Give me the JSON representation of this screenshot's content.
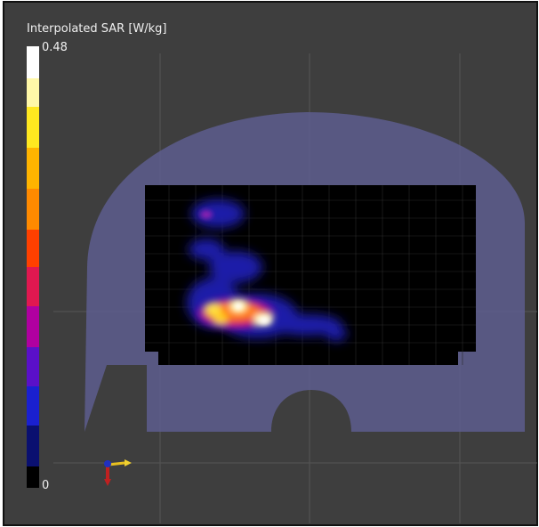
{
  "colorbar": {
    "title": "Interpolated SAR [W/kg]",
    "max": 0.48,
    "min": 0
  }
}
